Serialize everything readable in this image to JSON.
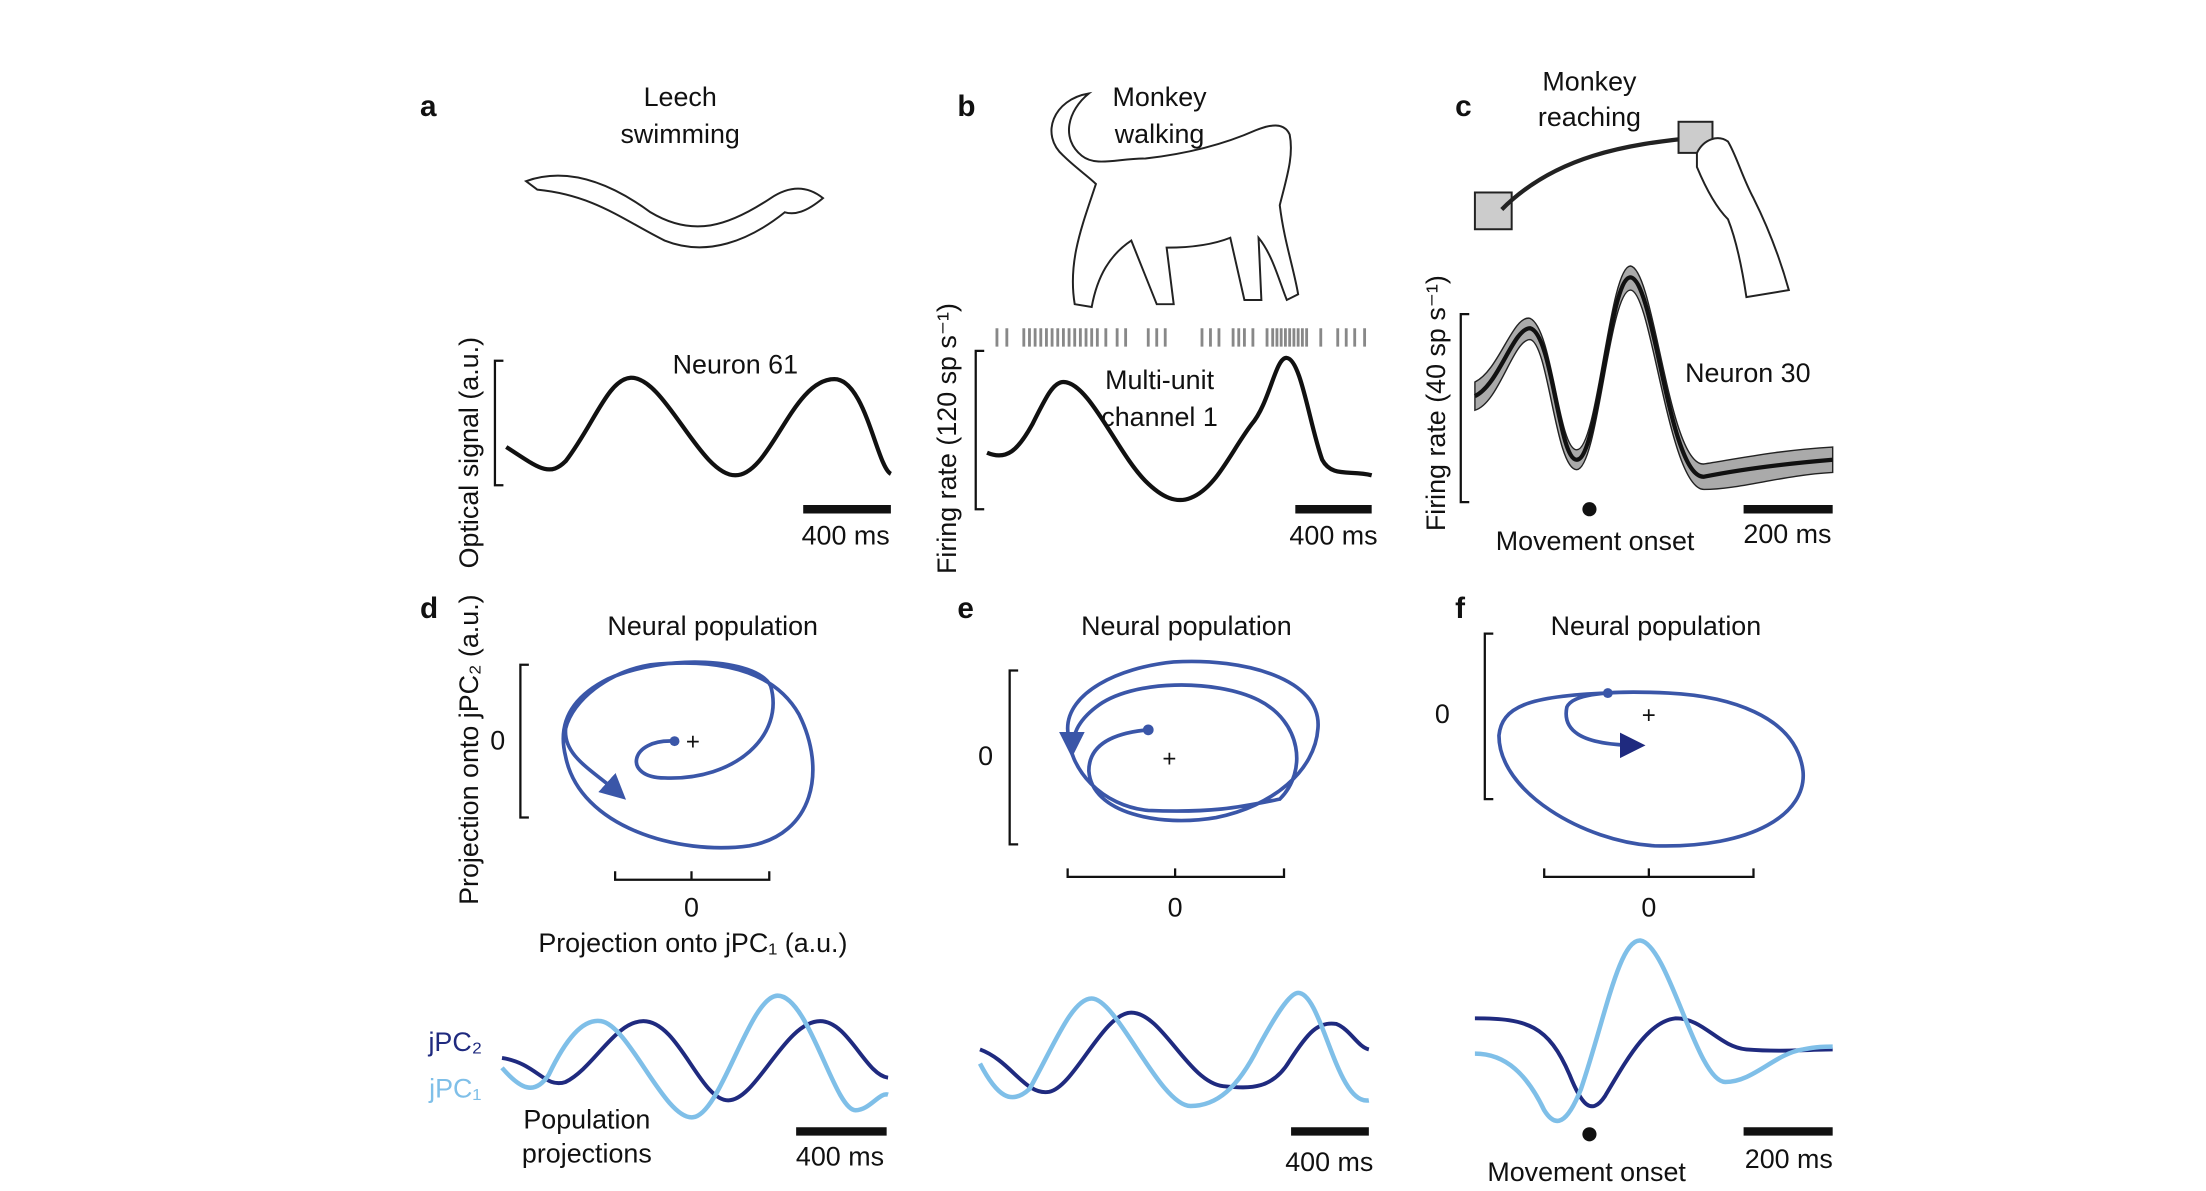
{
  "panels": [
    {
      "label": "a",
      "title": [
        "Leech",
        "swimming"
      ],
      "y_axis_label": "Optical signal (a.u.)",
      "trace_label": "Neuron 61",
      "scale_bar": "400 ms"
    },
    {
      "label": "b",
      "title": [
        "Monkey",
        "walking"
      ],
      "y_axis_label": "Firing rate (120 sp s⁻¹)",
      "trace_label": [
        "Multi-unit",
        "channel 1"
      ],
      "scale_bar": "400 ms"
    },
    {
      "label": "c",
      "title": [
        "Monkey",
        "reaching"
      ],
      "y_axis_label": "Firing rate (40 sp s⁻¹)",
      "trace_label": "Neuron 30",
      "event_label": "Movement onset",
      "scale_bar": "200 ms"
    },
    {
      "label": "d",
      "title": "Neural population",
      "y_axis_label": "Projection onto jPC₂ (a.u.)",
      "y_tick": "0",
      "x_tick": "0",
      "x_axis_label": "Projection onto jPC₁ (a.u.)",
      "legend": [
        "jPC₂",
        "jPC₁"
      ],
      "trace_label": [
        "Population",
        "projections"
      ],
      "scale_bar": "400 ms"
    },
    {
      "label": "e",
      "title": "Neural population",
      "y_tick": "0",
      "x_tick": "0",
      "scale_bar": "400 ms"
    },
    {
      "label": "f",
      "title": "Neural population",
      "y_tick": "0",
      "x_tick": "0",
      "event_label": "Movement onset",
      "scale_bar": "200 ms"
    }
  ]
}
